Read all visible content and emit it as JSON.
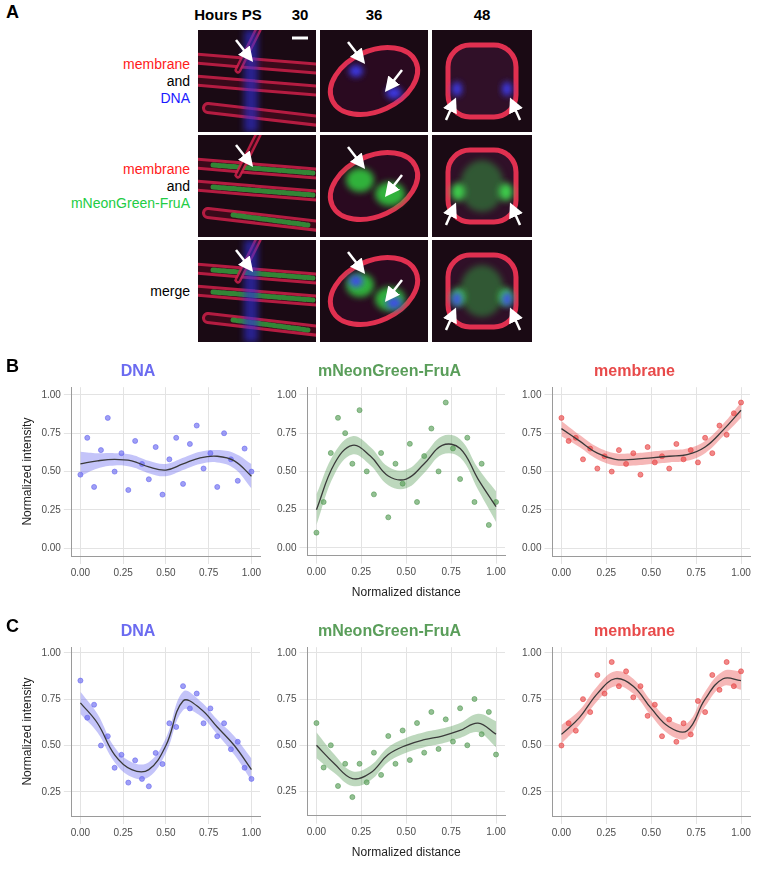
{
  "panel_labels": [
    "A",
    "B",
    "C"
  ],
  "panel_a": {
    "column_header": "Hours PS",
    "columns": [
      "30",
      "36",
      "48"
    ],
    "rows": [
      {
        "lines": [
          "membrane",
          "and",
          "DNA"
        ],
        "colors": [
          "#ff1a1a",
          "#000000",
          "#1a1aff"
        ]
      },
      {
        "lines": [
          "membrane",
          "and",
          "mNeonGreen-FruA"
        ],
        "colors": [
          "#ff1a1a",
          "#000000",
          "#22cc44"
        ]
      },
      {
        "lines": [
          "merge"
        ],
        "colors": [
          "#000000"
        ]
      }
    ]
  },
  "chart_data": [
    {
      "type": "scatter",
      "title": "DNA",
      "color": "#6b6bf0",
      "y_label": "Normalized intensity",
      "xlim": [
        -0.05,
        1.05
      ],
      "ylim": [
        -0.05,
        1.05
      ],
      "xticks": [
        {
          "value": 0,
          "label": "0.00"
        },
        {
          "value": 0.25,
          "label": "0.25"
        },
        {
          "value": 0.5,
          "label": "0.50"
        },
        {
          "value": 0.75,
          "label": "0.75"
        },
        {
          "value": 1,
          "label": "1.00"
        }
      ],
      "yticks": [
        {
          "value": 0,
          "label": "0.00"
        },
        {
          "value": 0.25,
          "label": "0.25"
        },
        {
          "value": 0.5,
          "label": "0.50"
        },
        {
          "value": 0.75,
          "label": "0.75"
        },
        {
          "value": 1,
          "label": "1.00"
        }
      ],
      "grid": true,
      "points": {
        "x": [
          0.0,
          0.04,
          0.08,
          0.12,
          0.16,
          0.2,
          0.24,
          0.28,
          0.32,
          0.36,
          0.4,
          0.44,
          0.48,
          0.52,
          0.56,
          0.6,
          0.64,
          0.68,
          0.72,
          0.76,
          0.8,
          0.84,
          0.88,
          0.92,
          0.96,
          1.0
        ],
        "y": [
          0.48,
          0.72,
          0.4,
          0.64,
          0.85,
          0.5,
          0.62,
          0.38,
          0.7,
          0.55,
          0.45,
          0.66,
          0.35,
          0.58,
          0.72,
          0.42,
          0.68,
          0.8,
          0.52,
          0.62,
          0.4,
          0.75,
          0.58,
          0.44,
          0.65,
          0.5
        ]
      },
      "fit": {
        "x": [
          0,
          0.1,
          0.2,
          0.3,
          0.4,
          0.5,
          0.6,
          0.7,
          0.8,
          0.9,
          1
        ],
        "y": [
          0.55,
          0.57,
          0.58,
          0.57,
          0.53,
          0.51,
          0.55,
          0.59,
          0.6,
          0.57,
          0.47
        ],
        "lower": [
          0.47,
          0.52,
          0.54,
          0.53,
          0.49,
          0.47,
          0.51,
          0.55,
          0.56,
          0.52,
          0.39
        ],
        "upper": [
          0.63,
          0.62,
          0.62,
          0.61,
          0.57,
          0.55,
          0.59,
          0.63,
          0.64,
          0.62,
          0.55
        ]
      }
    },
    {
      "type": "scatter",
      "title": "mNeonGreen-FruA",
      "color": "#5a9e5a",
      "x_label": "Normalized distance",
      "xlim": [
        -0.05,
        1.05
      ],
      "ylim": [
        -0.05,
        1.05
      ],
      "xticks": [
        {
          "value": 0,
          "label": "0.00"
        },
        {
          "value": 0.25,
          "label": "0.25"
        },
        {
          "value": 0.5,
          "label": "0.50"
        },
        {
          "value": 0.75,
          "label": "0.75"
        },
        {
          "value": 1,
          "label": "1.00"
        }
      ],
      "yticks": [
        {
          "value": 0,
          "label": "0.00"
        },
        {
          "value": 0.25,
          "label": "0.25"
        },
        {
          "value": 0.5,
          "label": "0.50"
        },
        {
          "value": 0.75,
          "label": "0.75"
        },
        {
          "value": 1,
          "label": "1.00"
        }
      ],
      "grid": true,
      "points": {
        "x": [
          0.0,
          0.04,
          0.08,
          0.12,
          0.16,
          0.2,
          0.24,
          0.28,
          0.32,
          0.36,
          0.4,
          0.44,
          0.48,
          0.52,
          0.56,
          0.6,
          0.64,
          0.68,
          0.72,
          0.76,
          0.8,
          0.84,
          0.88,
          0.92,
          0.96,
          1.0
        ],
        "y": [
          0.1,
          0.3,
          0.62,
          0.85,
          0.75,
          0.55,
          0.9,
          0.5,
          0.35,
          0.62,
          0.2,
          0.55,
          0.42,
          0.68,
          0.3,
          0.6,
          0.78,
          0.5,
          0.95,
          0.65,
          0.45,
          0.72,
          0.3,
          0.55,
          0.15,
          0.3
        ]
      },
      "fit": {
        "x": [
          0,
          0.1,
          0.2,
          0.3,
          0.4,
          0.5,
          0.6,
          0.7,
          0.8,
          0.9,
          1
        ],
        "y": [
          0.25,
          0.55,
          0.67,
          0.6,
          0.47,
          0.45,
          0.55,
          0.67,
          0.65,
          0.45,
          0.27
        ],
        "lower": [
          0.15,
          0.48,
          0.61,
          0.54,
          0.41,
          0.39,
          0.49,
          0.61,
          0.59,
          0.38,
          0.17
        ],
        "upper": [
          0.35,
          0.62,
          0.73,
          0.66,
          0.53,
          0.51,
          0.61,
          0.73,
          0.71,
          0.52,
          0.37
        ]
      }
    },
    {
      "type": "scatter",
      "title": "membrane",
      "color": "#e84a4a",
      "xlim": [
        -0.05,
        1.05
      ],
      "ylim": [
        -0.05,
        1.05
      ],
      "xticks": [
        {
          "value": 0,
          "label": "0.00"
        },
        {
          "value": 0.25,
          "label": "0.25"
        },
        {
          "value": 0.5,
          "label": "0.50"
        },
        {
          "value": 0.75,
          "label": "0.75"
        },
        {
          "value": 1,
          "label": "1.00"
        }
      ],
      "yticks": [
        {
          "value": 0,
          "label": "0.00"
        },
        {
          "value": 0.25,
          "label": "0.25"
        },
        {
          "value": 0.5,
          "label": "0.50"
        },
        {
          "value": 0.75,
          "label": "0.75"
        },
        {
          "value": 1,
          "label": "1.00"
        }
      ],
      "grid": true,
      "points": {
        "x": [
          0.0,
          0.04,
          0.08,
          0.12,
          0.16,
          0.2,
          0.24,
          0.28,
          0.32,
          0.36,
          0.4,
          0.44,
          0.48,
          0.52,
          0.56,
          0.6,
          0.64,
          0.68,
          0.72,
          0.76,
          0.8,
          0.84,
          0.88,
          0.92,
          0.96,
          1.0
        ],
        "y": [
          0.85,
          0.7,
          0.72,
          0.58,
          0.65,
          0.52,
          0.6,
          0.5,
          0.64,
          0.55,
          0.62,
          0.48,
          0.66,
          0.56,
          0.6,
          0.52,
          0.68,
          0.58,
          0.64,
          0.56,
          0.72,
          0.62,
          0.8,
          0.74,
          0.88,
          0.95
        ]
      },
      "fit": {
        "x": [
          0,
          0.1,
          0.2,
          0.3,
          0.4,
          0.5,
          0.6,
          0.7,
          0.8,
          0.9,
          1
        ],
        "y": [
          0.78,
          0.7,
          0.62,
          0.58,
          0.58,
          0.59,
          0.6,
          0.61,
          0.66,
          0.77,
          0.9
        ],
        "lower": [
          0.73,
          0.66,
          0.58,
          0.54,
          0.54,
          0.55,
          0.56,
          0.57,
          0.62,
          0.73,
          0.85
        ],
        "upper": [
          0.83,
          0.74,
          0.66,
          0.62,
          0.62,
          0.63,
          0.64,
          0.65,
          0.7,
          0.81,
          0.95
        ]
      }
    },
    {
      "type": "scatter",
      "title": "DNA",
      "color": "#6b6bf0",
      "y_label": "Normalized intensity",
      "xlim": [
        -0.05,
        1.05
      ],
      "ylim": [
        0.12,
        1.03
      ],
      "xticks": [
        {
          "value": 0,
          "label": "0.00"
        },
        {
          "value": 0.25,
          "label": "0.25"
        },
        {
          "value": 0.5,
          "label": "0.50"
        },
        {
          "value": 0.75,
          "label": "0.75"
        },
        {
          "value": 1,
          "label": "1.00"
        }
      ],
      "yticks": [
        {
          "value": 0.25,
          "label": "0.25"
        },
        {
          "value": 0.5,
          "label": "0.50"
        },
        {
          "value": 0.75,
          "label": "0.75"
        },
        {
          "value": 1,
          "label": "1.00"
        }
      ],
      "grid": true,
      "points": {
        "x": [
          0.0,
          0.04,
          0.08,
          0.12,
          0.16,
          0.2,
          0.24,
          0.28,
          0.32,
          0.36,
          0.4,
          0.44,
          0.48,
          0.52,
          0.56,
          0.6,
          0.64,
          0.68,
          0.72,
          0.76,
          0.8,
          0.84,
          0.88,
          0.92,
          0.96,
          1.0
        ],
        "y": [
          0.85,
          0.65,
          0.72,
          0.5,
          0.55,
          0.38,
          0.45,
          0.3,
          0.42,
          0.32,
          0.28,
          0.46,
          0.4,
          0.62,
          0.6,
          0.82,
          0.7,
          0.78,
          0.62,
          0.7,
          0.55,
          0.62,
          0.48,
          0.52,
          0.38,
          0.32
        ]
      },
      "fit": {
        "x": [
          0,
          0.1,
          0.2,
          0.3,
          0.4,
          0.5,
          0.6,
          0.7,
          0.8,
          0.9,
          1
        ],
        "y": [
          0.73,
          0.62,
          0.45,
          0.37,
          0.37,
          0.5,
          0.74,
          0.7,
          0.6,
          0.5,
          0.37
        ],
        "lower": [
          0.67,
          0.57,
          0.41,
          0.33,
          0.33,
          0.46,
          0.69,
          0.66,
          0.56,
          0.45,
          0.31
        ],
        "upper": [
          0.79,
          0.67,
          0.49,
          0.41,
          0.41,
          0.54,
          0.79,
          0.74,
          0.64,
          0.55,
          0.43
        ]
      }
    },
    {
      "type": "scatter",
      "title": "mNeonGreen-FruA",
      "color": "#5a9e5a",
      "x_label": "Normalized distance",
      "xlim": [
        -0.05,
        1.05
      ],
      "ylim": [
        0.12,
        1.03
      ],
      "xticks": [
        {
          "value": 0,
          "label": "0.00"
        },
        {
          "value": 0.25,
          "label": "0.25"
        },
        {
          "value": 0.5,
          "label": "0.50"
        },
        {
          "value": 0.75,
          "label": "0.75"
        },
        {
          "value": 1,
          "label": "1.00"
        }
      ],
      "yticks": [
        {
          "value": 0.25,
          "label": "0.25"
        },
        {
          "value": 0.5,
          "label": "0.50"
        },
        {
          "value": 0.75,
          "label": "0.75"
        },
        {
          "value": 1,
          "label": "1.00"
        }
      ],
      "grid": true,
      "points": {
        "x": [
          0.0,
          0.04,
          0.08,
          0.12,
          0.16,
          0.2,
          0.24,
          0.28,
          0.32,
          0.36,
          0.4,
          0.44,
          0.48,
          0.52,
          0.56,
          0.6,
          0.64,
          0.68,
          0.72,
          0.76,
          0.8,
          0.84,
          0.88,
          0.92,
          0.96,
          1.0
        ],
        "y": [
          0.62,
          0.38,
          0.5,
          0.28,
          0.4,
          0.22,
          0.4,
          0.3,
          0.46,
          0.34,
          0.55,
          0.4,
          0.58,
          0.42,
          0.62,
          0.46,
          0.68,
          0.48,
          0.64,
          0.52,
          0.7,
          0.5,
          0.75,
          0.56,
          0.68,
          0.45
        ]
      },
      "fit": {
        "x": [
          0,
          0.1,
          0.2,
          0.3,
          0.4,
          0.5,
          0.6,
          0.7,
          0.8,
          0.9,
          1
        ],
        "y": [
          0.5,
          0.4,
          0.32,
          0.35,
          0.45,
          0.5,
          0.53,
          0.55,
          0.58,
          0.62,
          0.56
        ],
        "lower": [
          0.43,
          0.35,
          0.28,
          0.31,
          0.41,
          0.46,
          0.49,
          0.51,
          0.54,
          0.57,
          0.49
        ],
        "upper": [
          0.57,
          0.45,
          0.36,
          0.39,
          0.49,
          0.54,
          0.57,
          0.59,
          0.62,
          0.67,
          0.63
        ]
      }
    },
    {
      "type": "scatter",
      "title": "membrane",
      "color": "#e84a4a",
      "xlim": [
        -0.05,
        1.05
      ],
      "ylim": [
        0.12,
        1.03
      ],
      "xticks": [
        {
          "value": 0,
          "label": "0.00"
        },
        {
          "value": 0.25,
          "label": "0.25"
        },
        {
          "value": 0.5,
          "label": "0.50"
        },
        {
          "value": 0.75,
          "label": "0.75"
        },
        {
          "value": 1,
          "label": "1.00"
        }
      ],
      "yticks": [
        {
          "value": 0.25,
          "label": "0.25"
        },
        {
          "value": 0.5,
          "label": "0.50"
        },
        {
          "value": 0.75,
          "label": "0.75"
        },
        {
          "value": 1,
          "label": "1.00"
        }
      ],
      "grid": true,
      "points": {
        "x": [
          0.0,
          0.04,
          0.08,
          0.12,
          0.16,
          0.2,
          0.24,
          0.28,
          0.32,
          0.36,
          0.4,
          0.44,
          0.48,
          0.52,
          0.56,
          0.6,
          0.64,
          0.68,
          0.72,
          0.76,
          0.8,
          0.84,
          0.88,
          0.92,
          0.96,
          1.0
        ],
        "y": [
          0.5,
          0.62,
          0.58,
          0.75,
          0.68,
          0.88,
          0.78,
          0.95,
          0.82,
          0.9,
          0.76,
          0.82,
          0.66,
          0.72,
          0.55,
          0.64,
          0.52,
          0.62,
          0.56,
          0.74,
          0.68,
          0.88,
          0.8,
          0.95,
          0.82,
          0.9
        ]
      },
      "fit": {
        "x": [
          0,
          0.1,
          0.2,
          0.3,
          0.4,
          0.5,
          0.6,
          0.7,
          0.8,
          0.9,
          1
        ],
        "y": [
          0.56,
          0.65,
          0.78,
          0.86,
          0.82,
          0.7,
          0.6,
          0.58,
          0.75,
          0.86,
          0.85
        ],
        "lower": [
          0.51,
          0.61,
          0.74,
          0.82,
          0.78,
          0.66,
          0.56,
          0.54,
          0.71,
          0.82,
          0.8
        ],
        "upper": [
          0.61,
          0.69,
          0.82,
          0.9,
          0.86,
          0.74,
          0.64,
          0.62,
          0.79,
          0.9,
          0.9
        ]
      }
    }
  ]
}
